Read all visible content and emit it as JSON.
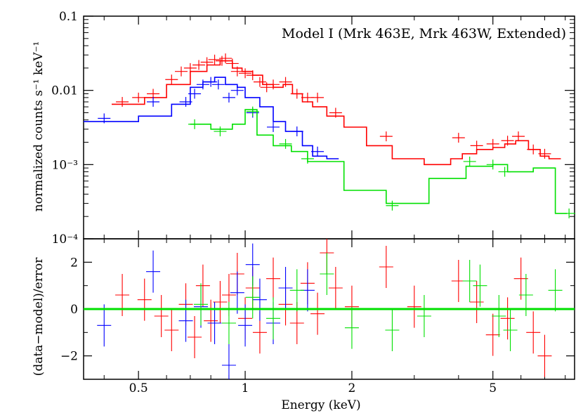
{
  "chart_data": [
    {
      "type": "line",
      "panel": "spectrum",
      "title": "Model I (Mrk 463E, Mrk 463W, Extended)",
      "xlabel": "Energy (keV)",
      "ylabel": "normalized counts s⁻¹ keV⁻¹",
      "xscale": "log",
      "yscale": "log",
      "xlim": [
        0.35,
        8.5
      ],
      "ylim": [
        0.0001,
        0.1
      ],
      "y_tick_labels": [
        "0.1",
        "0.01",
        "10⁻³",
        "10⁻⁴"
      ],
      "series": [
        {
          "name": "Mrk 463E",
          "color": "#ff0000",
          "model_step": [
            [
              0.42,
              0.0065
            ],
            [
              0.52,
              0.008
            ],
            [
              0.6,
              0.012
            ],
            [
              0.7,
              0.018
            ],
            [
              0.78,
              0.022
            ],
            [
              0.85,
              0.025
            ],
            [
              0.92,
              0.02
            ],
            [
              0.98,
              0.018
            ],
            [
              1.05,
              0.016
            ],
            [
              1.12,
              0.012
            ],
            [
              1.2,
              0.011
            ],
            [
              1.28,
              0.012
            ],
            [
              1.36,
              0.009
            ],
            [
              1.45,
              0.007
            ],
            [
              1.55,
              0.006
            ],
            [
              1.7,
              0.0045
            ],
            [
              1.9,
              0.0032
            ],
            [
              2.2,
              0.0018
            ],
            [
              2.6,
              0.0012
            ],
            [
              3.2,
              0.001
            ],
            [
              3.8,
              0.0012
            ],
            [
              4.1,
              0.0014
            ],
            [
              4.5,
              0.0016
            ],
            [
              5.0,
              0.0017
            ],
            [
              5.4,
              0.0019
            ],
            [
              5.8,
              0.0021
            ],
            [
              6.3,
              0.0016
            ],
            [
              6.8,
              0.0013
            ],
            [
              7.2,
              0.0012
            ]
          ],
          "points": [
            [
              0.45,
              0.007
            ],
            [
              0.5,
              0.008
            ],
            [
              0.55,
              0.009
            ],
            [
              0.62,
              0.014
            ],
            [
              0.66,
              0.018
            ],
            [
              0.7,
              0.02
            ],
            [
              0.74,
              0.022
            ],
            [
              0.78,
              0.024
            ],
            [
              0.82,
              0.026
            ],
            [
              0.86,
              0.025
            ],
            [
              0.88,
              0.027
            ],
            [
              0.92,
              0.023
            ],
            [
              0.95,
              0.018
            ],
            [
              1.0,
              0.017
            ],
            [
              1.05,
              0.016
            ],
            [
              1.1,
              0.013
            ],
            [
              1.15,
              0.011
            ],
            [
              1.2,
              0.012
            ],
            [
              1.3,
              0.013
            ],
            [
              1.4,
              0.009
            ],
            [
              1.5,
              0.008
            ],
            [
              1.6,
              0.008
            ],
            [
              1.8,
              0.005
            ],
            [
              2.5,
              0.0024
            ],
            [
              4.0,
              0.0023
            ],
            [
              4.5,
              0.0018
            ],
            [
              5.0,
              0.0019
            ],
            [
              5.5,
              0.0021
            ],
            [
              5.9,
              0.0024
            ],
            [
              6.5,
              0.0016
            ],
            [
              7.0,
              0.0014
            ]
          ],
          "residuals": [
            [
              0.45,
              0.6
            ],
            [
              0.52,
              0.4
            ],
            [
              0.58,
              -0.3
            ],
            [
              0.62,
              -0.9
            ],
            [
              0.68,
              0.2
            ],
            [
              0.72,
              -1.2
            ],
            [
              0.76,
              1.0
            ],
            [
              0.8,
              -0.5
            ],
            [
              0.85,
              0.3
            ],
            [
              0.9,
              0.6
            ],
            [
              0.95,
              1.5
            ],
            [
              1.0,
              -0.4
            ],
            [
              1.05,
              0.9
            ],
            [
              1.1,
              -1.0
            ],
            [
              1.2,
              1.3
            ],
            [
              1.3,
              0.2
            ],
            [
              1.4,
              -0.6
            ],
            [
              1.5,
              1.1
            ],
            [
              1.6,
              -0.2
            ],
            [
              1.7,
              2.4
            ],
            [
              1.8,
              0.9
            ],
            [
              2.0,
              0.1
            ],
            [
              2.5,
              1.8
            ],
            [
              3.0,
              0.1
            ],
            [
              4.0,
              1.2
            ],
            [
              4.5,
              0.3
            ],
            [
              5.0,
              -1.1
            ],
            [
              5.5,
              -0.4
            ],
            [
              6.0,
              1.3
            ],
            [
              6.5,
              -1.0
            ],
            [
              7.0,
              -2.0
            ]
          ]
        },
        {
          "name": "Mrk 463W",
          "color": "#0000ff",
          "model_step": [
            [
              0.35,
              0.0038
            ],
            [
              0.5,
              0.0045
            ],
            [
              0.62,
              0.0065
            ],
            [
              0.7,
              0.011
            ],
            [
              0.76,
              0.013
            ],
            [
              0.82,
              0.015
            ],
            [
              0.88,
              0.012
            ],
            [
              0.95,
              0.011
            ],
            [
              1.0,
              0.008
            ],
            [
              1.1,
              0.006
            ],
            [
              1.2,
              0.0038
            ],
            [
              1.3,
              0.0028
            ],
            [
              1.45,
              0.0018
            ],
            [
              1.55,
              0.0013
            ],
            [
              1.7,
              0.0012
            ]
          ],
          "points": [
            [
              0.4,
              0.0042
            ],
            [
              0.55,
              0.007
            ],
            [
              0.68,
              0.007
            ],
            [
              0.72,
              0.009
            ],
            [
              0.76,
              0.012
            ],
            [
              0.8,
              0.013
            ],
            [
              0.84,
              0.012
            ],
            [
              0.9,
              0.008
            ],
            [
              0.95,
              0.01
            ],
            [
              1.05,
              0.005
            ],
            [
              1.2,
              0.0032
            ],
            [
              1.4,
              0.0028
            ],
            [
              1.6,
              0.0015
            ]
          ],
          "residuals": [
            [
              0.4,
              -0.7
            ],
            [
              0.55,
              1.6
            ],
            [
              0.68,
              -0.5
            ],
            [
              0.75,
              0.1
            ],
            [
              0.82,
              -0.6
            ],
            [
              0.9,
              -2.4
            ],
            [
              0.95,
              0.7
            ],
            [
              1.0,
              -0.7
            ],
            [
              1.05,
              1.9
            ],
            [
              1.1,
              0.4
            ],
            [
              1.2,
              -0.6
            ],
            [
              1.3,
              0.9
            ],
            [
              1.5,
              0.8
            ]
          ]
        },
        {
          "name": "Extended",
          "color": "#00e000",
          "model_step": [
            [
              0.7,
              0.0035
            ],
            [
              0.8,
              0.003
            ],
            [
              0.92,
              0.0035
            ],
            [
              1.0,
              0.0055
            ],
            [
              1.08,
              0.0025
            ],
            [
              1.2,
              0.0018
            ],
            [
              1.35,
              0.0015
            ],
            [
              1.5,
              0.0011
            ],
            [
              1.9,
              0.00045
            ],
            [
              2.5,
              0.0003
            ],
            [
              3.3,
              0.00065
            ],
            [
              4.2,
              0.00095
            ],
            [
              5.0,
              0.001
            ],
            [
              5.5,
              0.0008
            ],
            [
              6.5,
              0.0009
            ],
            [
              7.5,
              0.00022
            ]
          ],
          "points": [
            [
              0.72,
              0.0035
            ],
            [
              0.85,
              0.0028
            ],
            [
              1.05,
              0.0052
            ],
            [
              1.3,
              0.0019
            ],
            [
              1.5,
              0.0012
            ],
            [
              2.6,
              0.00028
            ],
            [
              4.3,
              0.0011
            ],
            [
              5.0,
              0.001
            ],
            [
              5.4,
              0.0008
            ],
            [
              8.2,
              0.00022
            ]
          ],
          "residuals": [
            [
              0.75,
              0.2
            ],
            [
              0.9,
              -0.6
            ],
            [
              1.05,
              0.5
            ],
            [
              1.2,
              -0.4
            ],
            [
              1.4,
              0.8
            ],
            [
              1.7,
              1.5
            ],
            [
              2.0,
              -0.8
            ],
            [
              2.6,
              -0.9
            ],
            [
              3.2,
              -0.3
            ],
            [
              4.3,
              1.2
            ],
            [
              4.6,
              1.0
            ],
            [
              5.2,
              -0.3
            ],
            [
              5.6,
              -0.9
            ],
            [
              6.2,
              0.6
            ],
            [
              7.5,
              0.8
            ]
          ]
        }
      ]
    },
    {
      "type": "scatter",
      "panel": "residuals",
      "xlabel": "Energy (keV)",
      "ylabel": "(data−model)/error",
      "xscale": "log",
      "xlim": [
        0.35,
        8.5
      ],
      "ylim": [
        -3,
        3
      ],
      "y_tick_labels": [
        "2",
        "0",
        "−2"
      ],
      "x_tick_labels": [
        "0.5",
        "1",
        "2",
        "5"
      ],
      "zero_line_color": "#00e000"
    }
  ]
}
